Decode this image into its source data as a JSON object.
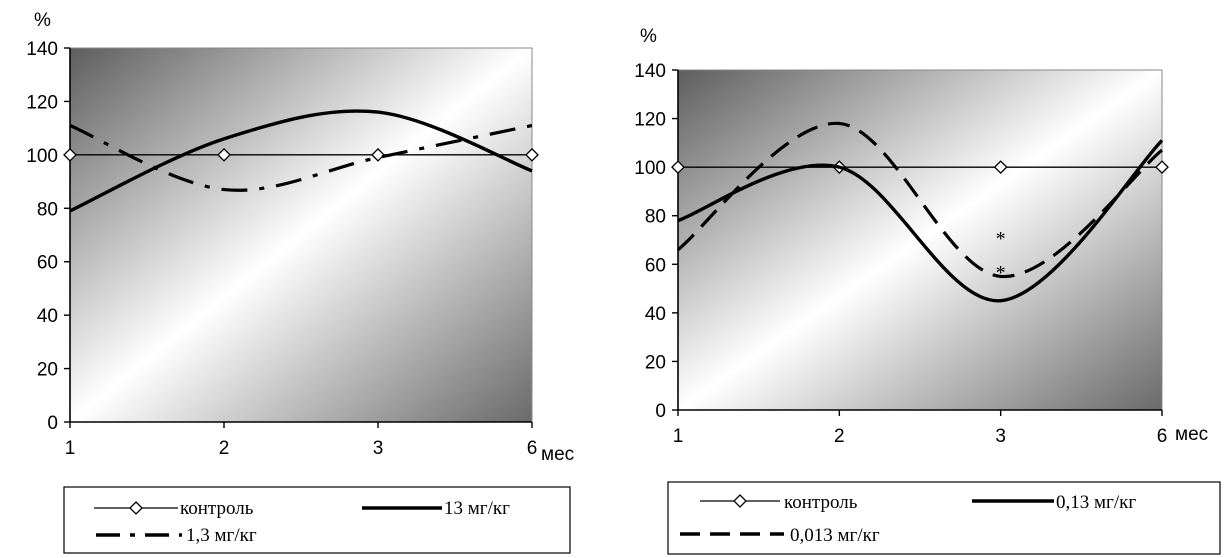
{
  "colors": {
    "line": "#000000",
    "gradient_dark": "#666666",
    "gradient_light": "#ffffff"
  },
  "chart_data": [
    {
      "type": "line",
      "ylabel": "%",
      "xlabel": "мес",
      "ylim": [
        0,
        140
      ],
      "yticks": [
        "0",
        "20",
        "40",
        "60",
        "80",
        "100",
        "120",
        "140"
      ],
      "categories": [
        "1",
        "2",
        "3",
        "6"
      ],
      "legend_position": "bottom",
      "series": [
        {
          "name": "контроль",
          "style": "solid-thin-diamond",
          "values": [
            100,
            100,
            100,
            100
          ]
        },
        {
          "name": "13 мг/кг",
          "style": "solid-thick",
          "values": [
            79,
            106,
            116,
            94
          ]
        },
        {
          "name": "1,3 мг/кг",
          "style": "dash-dot",
          "values": [
            111,
            87,
            99,
            111
          ]
        }
      ],
      "annotations": []
    },
    {
      "type": "line",
      "ylabel": "%",
      "xlabel": "мес",
      "ylim": [
        0,
        140
      ],
      "yticks": [
        "0",
        "20",
        "40",
        "60",
        "80",
        "100",
        "120",
        "140"
      ],
      "categories": [
        "1",
        "2",
        "3",
        "6"
      ],
      "legend_position": "bottom",
      "series": [
        {
          "name": "контроль",
          "style": "solid-thin-diamond",
          "values": [
            100,
            100,
            100,
            100
          ]
        },
        {
          "name": "0,13 мг/кг",
          "style": "solid-thick",
          "values": [
            78,
            100,
            45,
            111
          ]
        },
        {
          "name": "0,013 мг/кг",
          "style": "dashed",
          "values": [
            66,
            118,
            55,
            107
          ]
        }
      ],
      "annotations": [
        {
          "text": "*",
          "x": "3",
          "y": 72
        },
        {
          "text": "*",
          "x": "3",
          "y": 58
        }
      ]
    }
  ]
}
